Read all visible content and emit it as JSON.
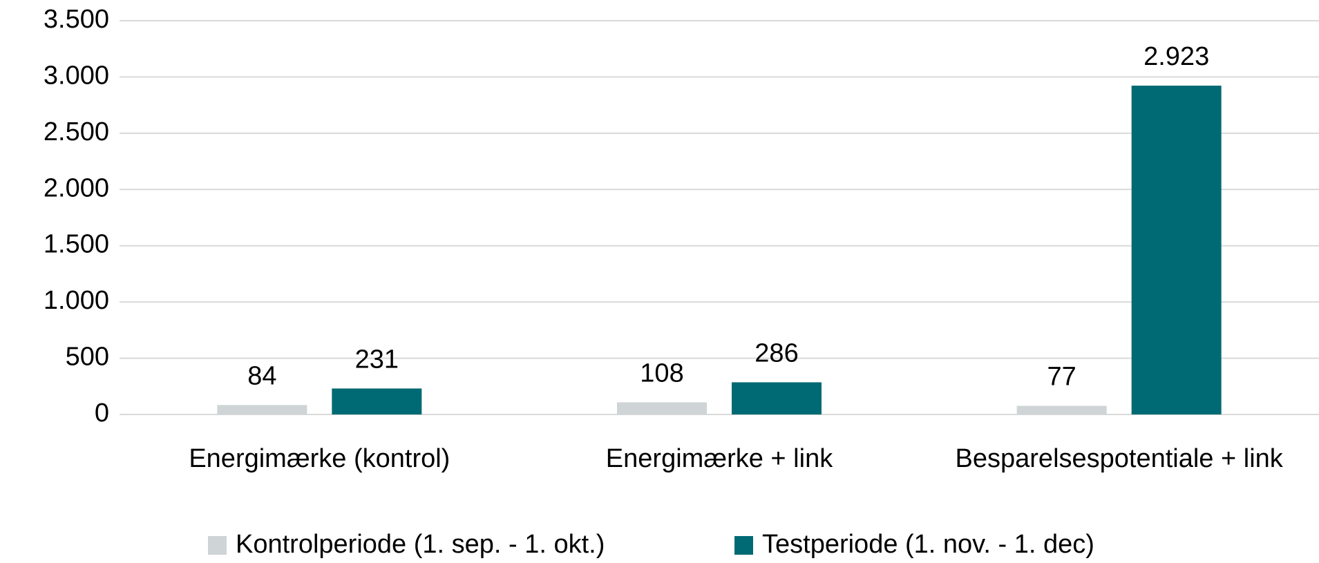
{
  "chart_data": {
    "type": "bar",
    "categories": [
      "Energimærke (kontrol)",
      "Energimærke + link",
      "Besparelsespotentiale + link"
    ],
    "series": [
      {
        "name": "Kontrolperiode (1. sep. - 1. okt.)",
        "color": "#cfd4d6",
        "values": [
          84,
          108,
          77
        ]
      },
      {
        "name": "Testperiode (1. nov. - 1. dec)",
        "color": "#006a74",
        "values": [
          231,
          286,
          2923
        ],
        "value_labels": [
          "231",
          "286",
          "2.923"
        ]
      }
    ],
    "ylim": [
      0,
      3500
    ],
    "yticks": [
      0,
      500,
      {
        "value": 1000,
        "label": "1.000"
      },
      {
        "value": 1500,
        "label": "1.500"
      },
      {
        "value": 2000,
        "label": "2.000"
      },
      {
        "value": 2500,
        "label": "2.500"
      },
      {
        "value": 3000,
        "label": "3.000"
      },
      {
        "value": 3500,
        "label": "3.500"
      }
    ],
    "grid": true
  }
}
